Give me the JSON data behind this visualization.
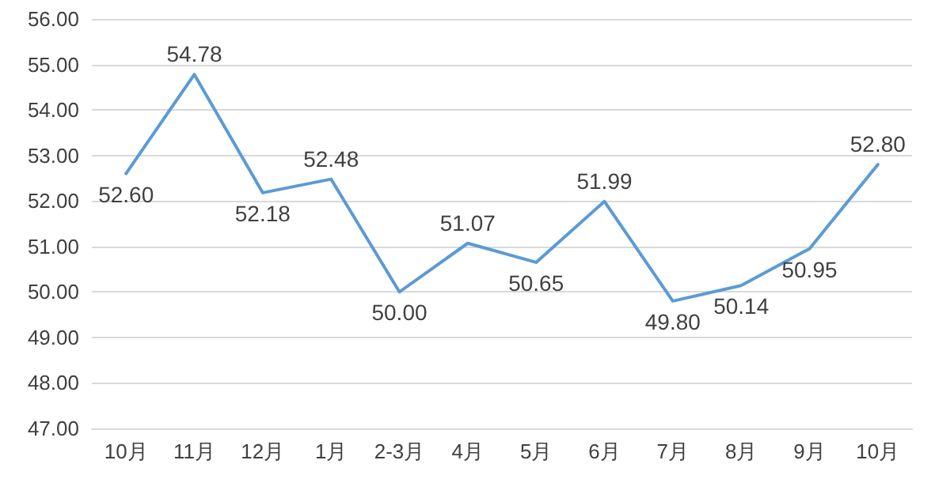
{
  "chart_data": {
    "type": "line",
    "categories": [
      "10月",
      "11月",
      "12月",
      "1月",
      "2-3月",
      "4月",
      "5月",
      "6月",
      "7月",
      "8月",
      "9月",
      "10月"
    ],
    "series": [
      {
        "color": "#5b9bd5",
        "values": [
          52.6,
          54.78,
          52.18,
          52.48,
          50.0,
          51.07,
          50.65,
          51.99,
          49.8,
          50.14,
          50.95,
          52.8
        ],
        "value_labels": [
          "52.60",
          "54.78",
          "52.18",
          "52.48",
          "50.00",
          "51.07",
          "50.65",
          "51.99",
          "49.80",
          "50.14",
          "50.95",
          "52.80"
        ]
      }
    ],
    "ylim": [
      47,
      56
    ],
    "yticks": [
      {
        "value": 47,
        "label": "47.00"
      },
      {
        "value": 48,
        "label": "48.00"
      },
      {
        "value": 49,
        "label": "49.00"
      },
      {
        "value": 50,
        "label": "50.00"
      },
      {
        "value": 51,
        "label": "51.00"
      },
      {
        "value": 52,
        "label": "52.00"
      },
      {
        "value": 53,
        "label": "53.00"
      },
      {
        "value": 54,
        "label": "54.00"
      },
      {
        "value": 55,
        "label": "55.00"
      },
      {
        "value": 56,
        "label": "56.00"
      }
    ],
    "grid": "y",
    "marker": "none",
    "line_style": "solid"
  }
}
